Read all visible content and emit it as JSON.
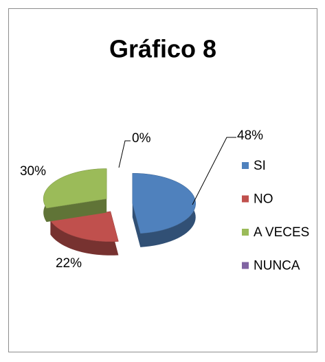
{
  "chart_data": {
    "type": "pie",
    "title": "Gráfico 8",
    "categories": [
      "SI",
      "NO",
      "A VECES",
      "NUNCA"
    ],
    "values": [
      48,
      22,
      30,
      0
    ],
    "value_labels": [
      "48%",
      "22%",
      "30%",
      "0%"
    ],
    "colors": [
      "#4f81bd",
      "#c0504d",
      "#9bbb59",
      "#8064a2"
    ],
    "legend": "right"
  }
}
